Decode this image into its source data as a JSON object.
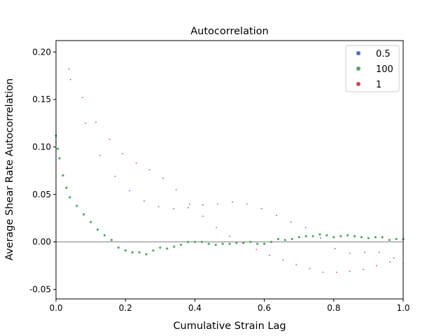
{
  "chart_data": {
    "type": "scatter",
    "title": "Autocorrelation",
    "xlabel": "Cumulative Strain Lag",
    "ylabel": "Average Shear Rate Autocorrelation",
    "xlim": [
      0.0,
      1.0
    ],
    "ylim": [
      -0.06,
      0.212
    ],
    "xticks": [
      "0.0",
      "0.2",
      "0.4",
      "0.6",
      "0.8",
      "1.0"
    ],
    "yticks": [
      "-0.05",
      "0.00",
      "0.05",
      "0.10",
      "0.15",
      "0.20"
    ],
    "grid": false,
    "legend_position": "top-right",
    "zero_line": true,
    "series": [
      {
        "name": "0.5",
        "color": "#4c72b0",
        "x": [
          0.0,
          0.042,
          0.085,
          0.127,
          0.17,
          0.212,
          0.254,
          0.296,
          0.339,
          0.381,
          0.423,
          0.466,
          0.508,
          0.55,
          0.592,
          0.635,
          0.677,
          0.719,
          0.762,
          0.804,
          0.846,
          0.889,
          0.931,
          0.973
        ],
        "y": [
          0.105,
          0.171,
          0.125,
          0.091,
          0.069,
          0.054,
          0.043,
          0.037,
          0.035,
          0.036,
          0.039,
          0.04,
          0.042,
          0.04,
          0.035,
          0.028,
          0.021,
          0.015,
          0.004,
          -0.007,
          -0.012,
          -0.011,
          -0.011,
          -0.017
        ]
      },
      {
        "name": "100",
        "color": "#55a868",
        "x": [
          0.0,
          0.005,
          0.01,
          0.02,
          0.03,
          0.04,
          0.06,
          0.08,
          0.1,
          0.12,
          0.14,
          0.16,
          0.18,
          0.2,
          0.22,
          0.24,
          0.26,
          0.28,
          0.3,
          0.32,
          0.34,
          0.36,
          0.38,
          0.4,
          0.42,
          0.44,
          0.46,
          0.48,
          0.5,
          0.52,
          0.54,
          0.56,
          0.58,
          0.6,
          0.62,
          0.64,
          0.66,
          0.68,
          0.7,
          0.72,
          0.74,
          0.76,
          0.78,
          0.8,
          0.82,
          0.84,
          0.86,
          0.88,
          0.9,
          0.92,
          0.94,
          0.96,
          0.98,
          1.0
        ],
        "y": [
          0.112,
          0.098,
          0.088,
          0.07,
          0.057,
          0.047,
          0.038,
          0.029,
          0.021,
          0.013,
          0.007,
          0.002,
          -0.006,
          -0.009,
          -0.011,
          -0.011,
          -0.013,
          -0.009,
          -0.006,
          -0.007,
          -0.005,
          -0.003,
          0.0,
          0.0,
          0.0,
          -0.002,
          -0.003,
          -0.002,
          -0.002,
          -0.001,
          -0.001,
          0.0,
          -0.002,
          -0.002,
          0.0,
          0.003,
          0.002,
          0.003,
          0.005,
          0.006,
          0.006,
          0.008,
          0.007,
          0.005,
          0.006,
          0.007,
          0.006,
          0.005,
          0.004,
          0.005,
          0.005,
          0.002,
          0.003,
          0.003
        ]
      },
      {
        "name": "1",
        "color": "#c44e52",
        "x": [
          0.0,
          0.038,
          0.077,
          0.115,
          0.154,
          0.192,
          0.231,
          0.269,
          0.308,
          0.346,
          0.385,
          0.423,
          0.462,
          0.5,
          0.538,
          0.577,
          0.615,
          0.654,
          0.692,
          0.731,
          0.769,
          0.808,
          0.846,
          0.885,
          0.923,
          0.962,
          1.0
        ],
        "y": [
          0.11,
          0.182,
          0.152,
          0.126,
          0.108,
          0.093,
          0.083,
          0.076,
          0.067,
          0.055,
          0.04,
          0.027,
          0.015,
          0.006,
          -0.001,
          -0.008,
          -0.014,
          -0.019,
          -0.024,
          -0.028,
          -0.032,
          -0.032,
          -0.031,
          -0.029,
          -0.025,
          -0.021,
          -0.023
        ]
      }
    ]
  }
}
